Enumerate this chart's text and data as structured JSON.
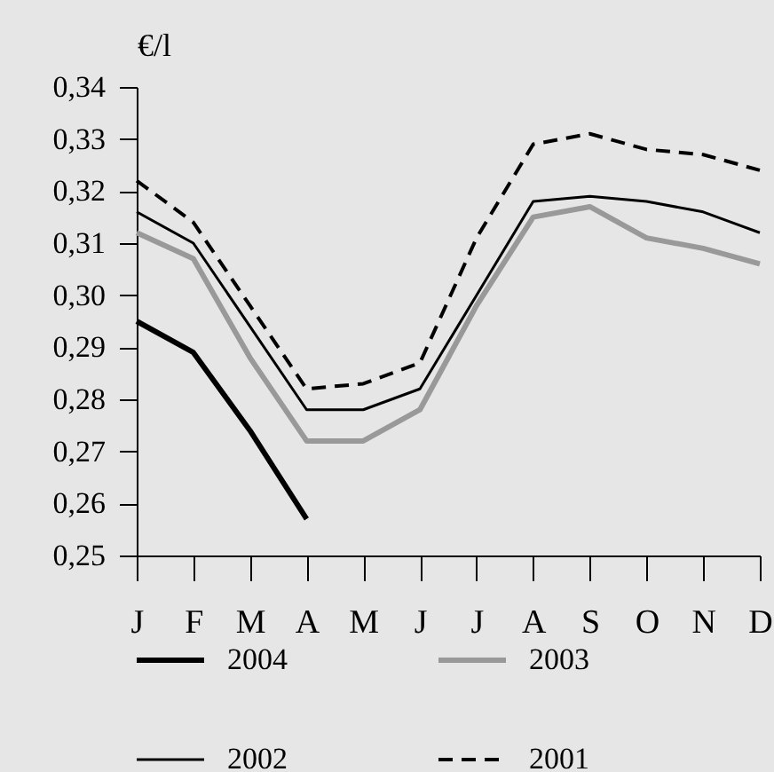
{
  "chart_data": {
    "type": "line",
    "ylabel": "€/l",
    "categories": [
      "J",
      "F",
      "M",
      "A",
      "M",
      "J",
      "J",
      "A",
      "S",
      "O",
      "N",
      "D"
    ],
    "series": [
      {
        "name": "2004",
        "color": "#000000",
        "line_style": "solid",
        "values": [
          0.295,
          0.289,
          0.274,
          0.257,
          null,
          null,
          null,
          null,
          null,
          null,
          null,
          null
        ]
      },
      {
        "name": "2003",
        "color": "#999999",
        "line_style": "solid",
        "values": [
          0.312,
          0.307,
          0.288,
          0.272,
          0.272,
          0.278,
          0.298,
          0.315,
          0.317,
          0.311,
          0.309,
          0.306
        ]
      },
      {
        "name": "2002",
        "color": "#000000",
        "line_style": "solid",
        "values": [
          0.316,
          0.31,
          0.294,
          0.278,
          0.278,
          0.282,
          0.3,
          0.318,
          0.319,
          0.318,
          0.316,
          0.312
        ]
      },
      {
        "name": "2001",
        "color": "#000000",
        "line_style": "dashed",
        "values": [
          0.322,
          0.314,
          0.298,
          0.282,
          0.283,
          0.287,
          0.311,
          0.329,
          0.331,
          0.328,
          0.327,
          0.324
        ]
      }
    ],
    "ylim": [
      0.25,
      0.34
    ],
    "yticks": [
      {
        "value": 0.25,
        "label": "0,25"
      },
      {
        "value": 0.26,
        "label": "0,26"
      },
      {
        "value": 0.27,
        "label": "0,27"
      },
      {
        "value": 0.28,
        "label": "0,28"
      },
      {
        "value": 0.29,
        "label": "0,29"
      },
      {
        "value": 0.3,
        "label": "0,30"
      },
      {
        "value": 0.31,
        "label": "0,31"
      },
      {
        "value": 0.32,
        "label": "0,32"
      },
      {
        "value": 0.33,
        "label": "0,33"
      },
      {
        "value": 0.34,
        "label": "0,34"
      }
    ],
    "grid": false,
    "legend": "bottom",
    "marker": "none"
  }
}
